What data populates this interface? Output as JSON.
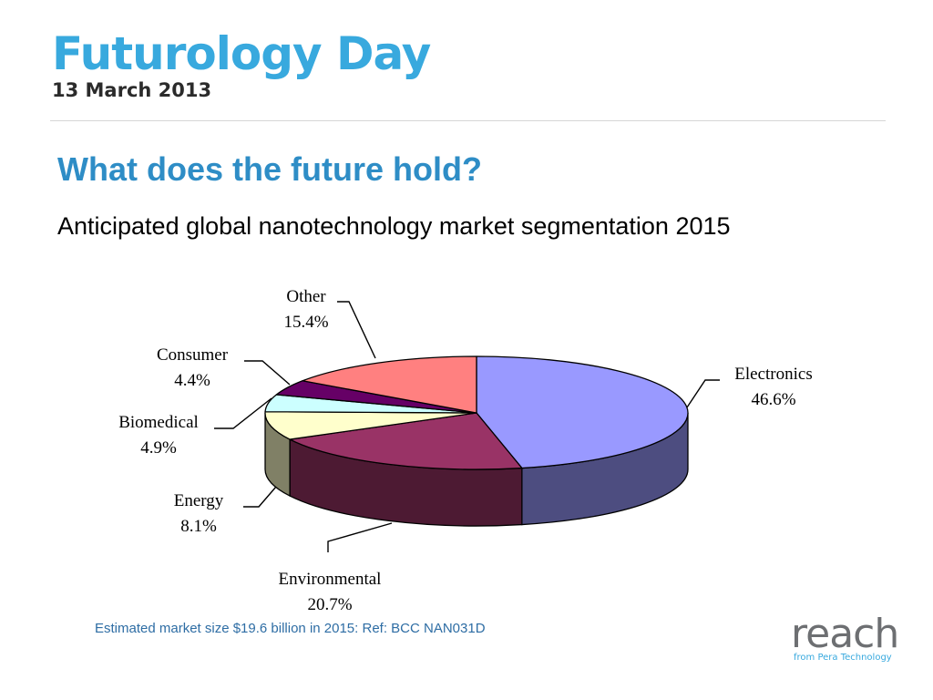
{
  "header": {
    "event_title": "Futurology Day",
    "event_date": "13 March 2013"
  },
  "slide": {
    "title": "What does the future hold?",
    "subtitle": "Anticipated global nanotechnology market segmentation 2015",
    "footnote": "Estimated market size $19.6 billion in 2015:  Ref:  BCC NAN031D"
  },
  "logo": {
    "word": "reach",
    "tagline": "from Pera Technology"
  },
  "colors": {
    "brand_cyan": "#38a9de",
    "title_blue": "#2e8dc6",
    "date_dark": "#2b2b2b",
    "footnote_blue": "#2e6da4",
    "logo_gray": "#6d6f72",
    "logo_tag_blue": "#38a9de"
  },
  "chart_data": {
    "type": "pie",
    "style": "3d",
    "title": "",
    "categories": [
      "Electronics",
      "Environmental",
      "Energy",
      "Biomedical",
      "Consumer",
      "Other"
    ],
    "values": [
      46.6,
      20.7,
      8.1,
      4.9,
      4.4,
      15.4
    ],
    "value_labels": [
      "46.6%",
      "20.7%",
      "8.1%",
      "4.9%",
      "4.4%",
      "15.4%"
    ],
    "colors": [
      "#9999ff",
      "#993366",
      "#ffffcc",
      "#ccffff",
      "#660066",
      "#ff8080"
    ],
    "legend": "none",
    "labels": "outside-with-leader-lines"
  }
}
